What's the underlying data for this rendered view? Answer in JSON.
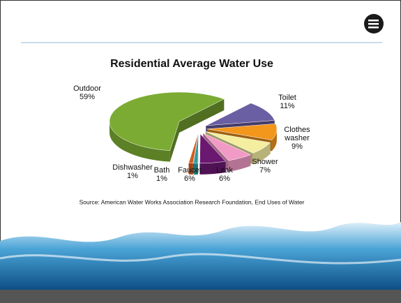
{
  "chart_data": {
    "type": "pie",
    "title": "Residential Average Water Use",
    "categories": [
      "Toilet",
      "Clothes washer",
      "Shower",
      "Leak",
      "Faucet",
      "Bath",
      "Dishwasher",
      "Outdoor"
    ],
    "values": [
      11,
      9,
      7,
      6,
      6,
      1,
      1,
      59
    ],
    "value_labels": [
      "11%",
      "9%",
      "7%",
      "6%",
      "6%",
      "1%",
      "1%",
      "59%"
    ],
    "colors": [
      "#6b5fa3",
      "#f2961c",
      "#f3eea0",
      "#f29ac6",
      "#6a1870",
      "#2a9c9c",
      "#d25a1c",
      "#7bab33"
    ],
    "source": "Source: American Water Works Association Research Foundation, End Uses of Water"
  }
}
